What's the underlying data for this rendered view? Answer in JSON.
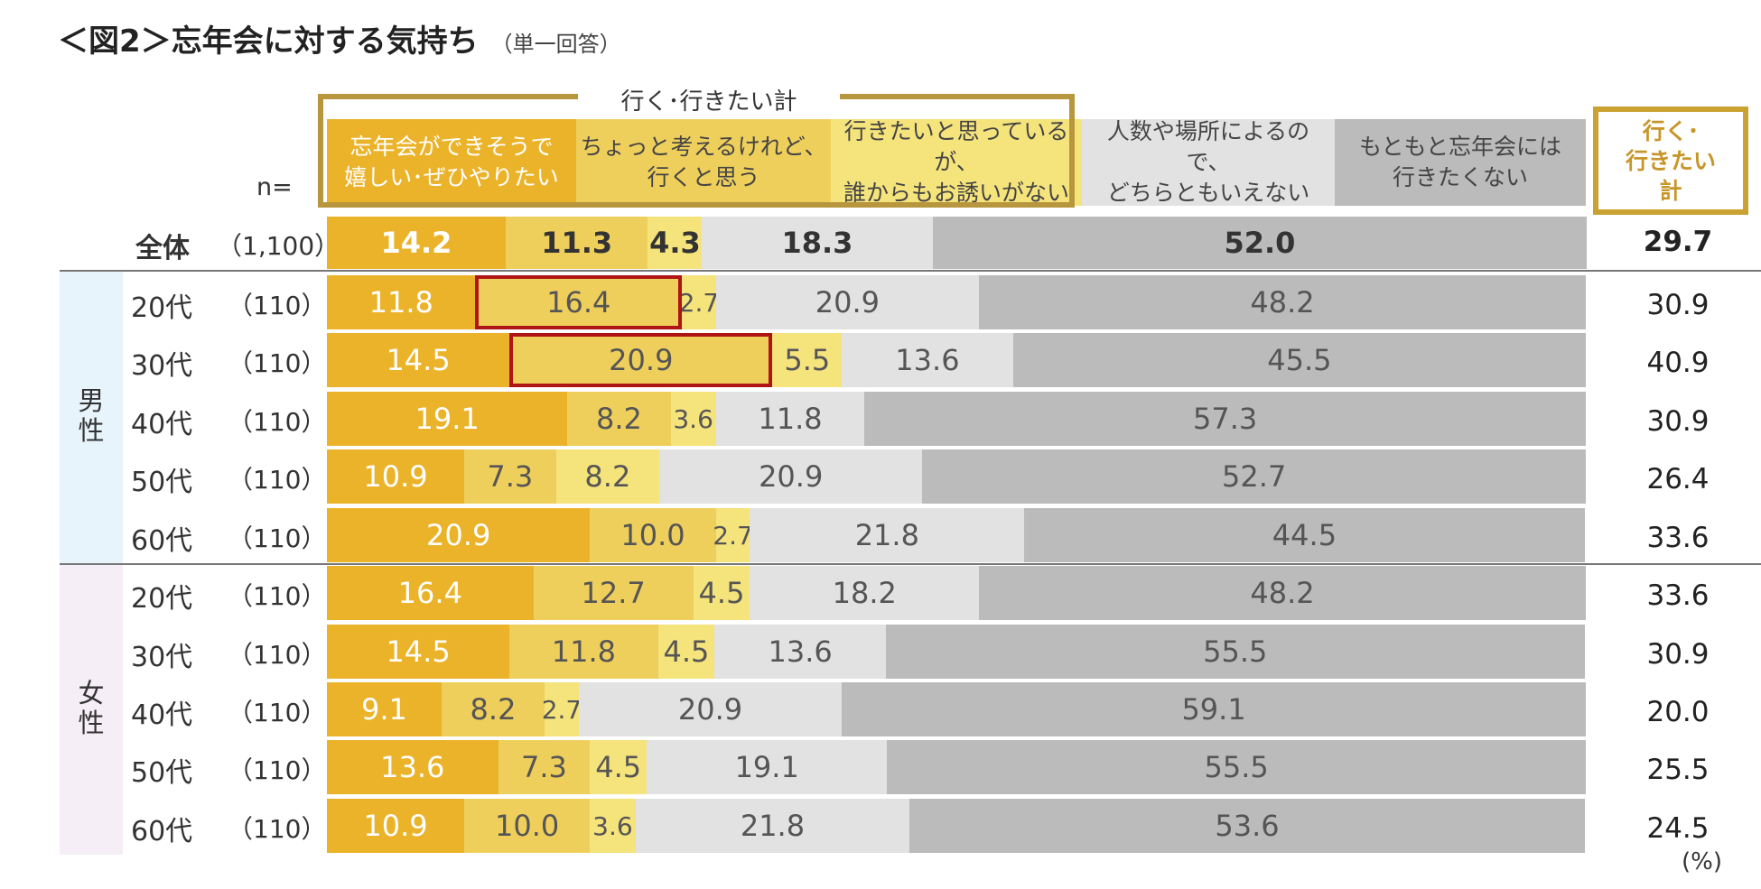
{
  "title": "＜図2＞忘年会に対する気持ち",
  "subtitle": "（単一回答）",
  "legend_group_label": "行く･行きたい計",
  "n_label": "n=",
  "unit_label": "(%)",
  "total_header": [
    "行く･",
    "行きたい",
    "計"
  ],
  "colors": [
    "#ebb32a",
    "#efcf5c",
    "#f5e37c",
    "#e2e2e2",
    "#bbbbbb"
  ],
  "band_colors": {
    "male": "#e8f4fb",
    "female": "#f6eef6"
  },
  "highlight_color": "#b01515",
  "group_labels": {
    "male": [
      "男",
      "性"
    ],
    "female": [
      "女",
      "性"
    ]
  },
  "chart_data": {
    "type": "bar",
    "orientation": "horizontal",
    "stacked": true,
    "title": "＜図2＞忘年会に対する気持ち",
    "xlim": [
      0,
      100
    ],
    "unit": "%",
    "series_names": [
      [
        "忘年会ができそうで",
        "嬉しい･ぜひやりたい"
      ],
      [
        "ちょっと考えるけれど、",
        "行くと思う"
      ],
      [
        "行きたいと思っているが、",
        "誰からもお誘いがない"
      ],
      [
        "人数や場所によるので、",
        "どちらともいえない"
      ],
      [
        "もともと忘年会には",
        "行きたくない"
      ]
    ],
    "rows": [
      {
        "group": "",
        "label": "全体",
        "n": "（1,100）",
        "values": [
          14.2,
          11.3,
          4.3,
          18.3,
          52.0
        ],
        "total": 29.7,
        "bold": true,
        "highlight_seg": null
      },
      {
        "group": "男性",
        "label": "20代",
        "n": "（110）",
        "values": [
          11.8,
          16.4,
          2.7,
          20.9,
          48.2
        ],
        "total": 30.9,
        "highlight_seg": 1
      },
      {
        "group": "男性",
        "label": "30代",
        "n": "（110）",
        "values": [
          14.5,
          20.9,
          5.5,
          13.6,
          45.5
        ],
        "total": 40.9,
        "highlight_seg": 1
      },
      {
        "group": "男性",
        "label": "40代",
        "n": "（110）",
        "values": [
          19.1,
          8.2,
          3.6,
          11.8,
          57.3
        ],
        "total": 30.9,
        "highlight_seg": null
      },
      {
        "group": "男性",
        "label": "50代",
        "n": "（110）",
        "values": [
          10.9,
          7.3,
          8.2,
          20.9,
          52.7
        ],
        "total": 26.4,
        "highlight_seg": null
      },
      {
        "group": "男性",
        "label": "60代",
        "n": "（110）",
        "values": [
          20.9,
          10.0,
          2.7,
          21.8,
          44.5
        ],
        "total": 33.6,
        "highlight_seg": null
      },
      {
        "group": "女性",
        "label": "20代",
        "n": "（110）",
        "values": [
          16.4,
          12.7,
          4.5,
          18.2,
          48.2
        ],
        "total": 33.6,
        "highlight_seg": null
      },
      {
        "group": "女性",
        "label": "30代",
        "n": "（110）",
        "values": [
          14.5,
          11.8,
          4.5,
          13.6,
          55.5
        ],
        "total": 30.9,
        "highlight_seg": null
      },
      {
        "group": "女性",
        "label": "40代",
        "n": "（110）",
        "values": [
          9.1,
          8.2,
          2.7,
          20.9,
          59.1
        ],
        "total": 20.0,
        "highlight_seg": null
      },
      {
        "group": "女性",
        "label": "50代",
        "n": "（110）",
        "values": [
          13.6,
          7.3,
          4.5,
          19.1,
          55.5
        ],
        "total": 25.5,
        "highlight_seg": null
      },
      {
        "group": "女性",
        "label": "60代",
        "n": "（110）",
        "values": [
          10.9,
          10.0,
          3.6,
          21.8,
          53.6
        ],
        "total": 24.5,
        "highlight_seg": null
      }
    ]
  }
}
